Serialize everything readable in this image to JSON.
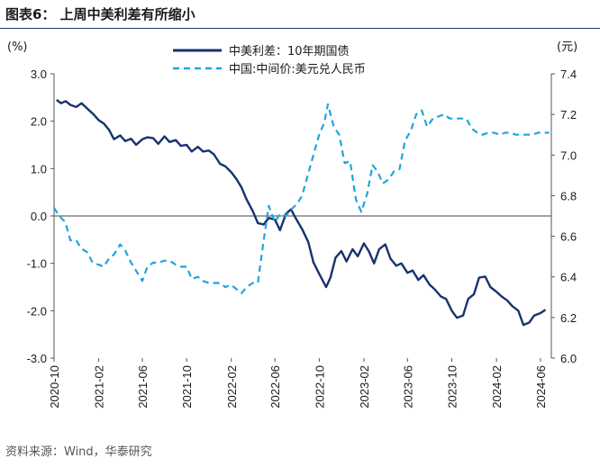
{
  "figure": {
    "title": "图表6：  上周中美利差有所缩小",
    "source": "资料来源：Wind，华泰研究"
  },
  "chart_data": {
    "type": "line",
    "x_tick_labels": [
      "2020-10",
      "2021-02",
      "2021-06",
      "2021-10",
      "2022-02",
      "2022-06",
      "2022-10",
      "2023-02",
      "2023-06",
      "2023-10",
      "2024-02",
      "2024-06"
    ],
    "y_left": {
      "unit": "(%)",
      "ticks": [
        "3.0",
        "2.0",
        "1.0",
        "0.0",
        "-1.0",
        "-2.0",
        "-3.0"
      ],
      "range": [
        -3.0,
        3.0
      ]
    },
    "y_right": {
      "unit": "(元)",
      "ticks": [
        "7.4",
        "7.2",
        "7.0",
        "6.8",
        "6.6",
        "6.4",
        "6.2",
        "6.0"
      ],
      "range": [
        6.0,
        7.4
      ]
    },
    "legend_position": "top-center",
    "zero_line": true,
    "series": [
      {
        "name": "中美利差：10年期国债",
        "axis": "left",
        "style": "solid",
        "color": "#17326e",
        "points": [
          [
            "2020-10-08",
            2.45
          ],
          [
            "2020-10-20",
            2.38
          ],
          [
            "2020-11-02",
            2.42
          ],
          [
            "2020-11-16",
            2.34
          ],
          [
            "2020-12-01",
            2.3
          ],
          [
            "2020-12-16",
            2.38
          ],
          [
            "2021-01-04",
            2.24
          ],
          [
            "2021-01-18",
            2.14
          ],
          [
            "2021-02-01",
            2.02
          ],
          [
            "2021-02-15",
            1.95
          ],
          [
            "2021-03-01",
            1.82
          ],
          [
            "2021-03-15",
            1.62
          ],
          [
            "2021-04-01",
            1.7
          ],
          [
            "2021-04-15",
            1.58
          ],
          [
            "2021-05-01",
            1.63
          ],
          [
            "2021-05-15",
            1.5
          ],
          [
            "2021-06-01",
            1.62
          ],
          [
            "2021-06-15",
            1.66
          ],
          [
            "2021-07-01",
            1.64
          ],
          [
            "2021-07-15",
            1.52
          ],
          [
            "2021-08-01",
            1.68
          ],
          [
            "2021-08-15",
            1.56
          ],
          [
            "2021-09-01",
            1.6
          ],
          [
            "2021-09-15",
            1.48
          ],
          [
            "2021-10-01",
            1.5
          ],
          [
            "2021-10-15",
            1.36
          ],
          [
            "2021-11-01",
            1.46
          ],
          [
            "2021-11-15",
            1.36
          ],
          [
            "2021-12-01",
            1.38
          ],
          [
            "2021-12-15",
            1.3
          ],
          [
            "2022-01-01",
            1.1
          ],
          [
            "2022-01-15",
            1.05
          ],
          [
            "2022-02-01",
            0.92
          ],
          [
            "2022-02-15",
            0.78
          ],
          [
            "2022-03-01",
            0.6
          ],
          [
            "2022-03-15",
            0.35
          ],
          [
            "2022-04-01",
            0.1
          ],
          [
            "2022-04-15",
            -0.15
          ],
          [
            "2022-05-01",
            -0.18
          ],
          [
            "2022-05-15",
            -0.04
          ],
          [
            "2022-06-01",
            -0.08
          ],
          [
            "2022-06-15",
            -0.3
          ],
          [
            "2022-07-01",
            0.04
          ],
          [
            "2022-07-15",
            0.14
          ],
          [
            "2022-08-01",
            -0.1
          ],
          [
            "2022-08-15",
            -0.28
          ],
          [
            "2022-09-01",
            -0.55
          ],
          [
            "2022-09-15",
            -0.98
          ],
          [
            "2022-10-01",
            -1.22
          ],
          [
            "2022-10-20",
            -1.5
          ],
          [
            "2022-11-01",
            -1.3
          ],
          [
            "2022-11-15",
            -0.88
          ],
          [
            "2022-12-01",
            -0.74
          ],
          [
            "2022-12-15",
            -0.96
          ],
          [
            "2023-01-01",
            -0.7
          ],
          [
            "2023-01-15",
            -0.85
          ],
          [
            "2023-02-01",
            -0.58
          ],
          [
            "2023-02-15",
            -0.75
          ],
          [
            "2023-03-01",
            -1.0
          ],
          [
            "2023-03-15",
            -0.7
          ],
          [
            "2023-04-01",
            -0.6
          ],
          [
            "2023-04-15",
            -0.9
          ],
          [
            "2023-05-01",
            -1.05
          ],
          [
            "2023-05-15",
            -1.0
          ],
          [
            "2023-06-01",
            -1.2
          ],
          [
            "2023-06-15",
            -1.15
          ],
          [
            "2023-07-01",
            -1.35
          ],
          [
            "2023-07-15",
            -1.25
          ],
          [
            "2023-08-01",
            -1.45
          ],
          [
            "2023-08-15",
            -1.55
          ],
          [
            "2023-09-01",
            -1.7
          ],
          [
            "2023-09-15",
            -1.75
          ],
          [
            "2023-10-01",
            -2.0
          ],
          [
            "2023-10-15",
            -2.15
          ],
          [
            "2023-11-01",
            -2.1
          ],
          [
            "2023-11-15",
            -1.75
          ],
          [
            "2023-12-01",
            -1.65
          ],
          [
            "2023-12-15",
            -1.3
          ],
          [
            "2024-01-01",
            -1.28
          ],
          [
            "2024-01-15",
            -1.5
          ],
          [
            "2024-02-01",
            -1.6
          ],
          [
            "2024-02-15",
            -1.7
          ],
          [
            "2024-03-01",
            -1.78
          ],
          [
            "2024-03-15",
            -1.9
          ],
          [
            "2024-04-01",
            -2.0
          ],
          [
            "2024-04-15",
            -2.3
          ],
          [
            "2024-05-01",
            -2.25
          ],
          [
            "2024-05-15",
            -2.1
          ],
          [
            "2024-06-01",
            -2.05
          ],
          [
            "2024-06-15",
            -1.98
          ]
        ]
      },
      {
        "name": "中国:中间价:美元兑人民币",
        "axis": "right",
        "style": "dashed",
        "color": "#1fa5dc",
        "points": [
          [
            "2020-10-01",
            6.74
          ],
          [
            "2020-10-15",
            6.7
          ],
          [
            "2020-11-01",
            6.67
          ],
          [
            "2020-11-15",
            6.58
          ],
          [
            "2020-12-01",
            6.58
          ],
          [
            "2020-12-15",
            6.54
          ],
          [
            "2021-01-01",
            6.52
          ],
          [
            "2021-01-15",
            6.47
          ],
          [
            "2021-02-01",
            6.46
          ],
          [
            "2021-02-15",
            6.45
          ],
          [
            "2021-03-01",
            6.49
          ],
          [
            "2021-03-15",
            6.51
          ],
          [
            "2021-04-01",
            6.56
          ],
          [
            "2021-04-15",
            6.53
          ],
          [
            "2021-05-01",
            6.47
          ],
          [
            "2021-05-15",
            6.43
          ],
          [
            "2021-06-01",
            6.38
          ],
          [
            "2021-06-15",
            6.45
          ],
          [
            "2021-07-01",
            6.47
          ],
          [
            "2021-07-15",
            6.47
          ],
          [
            "2021-08-01",
            6.48
          ],
          [
            "2021-08-15",
            6.48
          ],
          [
            "2021-09-01",
            6.46
          ],
          [
            "2021-09-15",
            6.45
          ],
          [
            "2021-10-01",
            6.45
          ],
          [
            "2021-10-15",
            6.39
          ],
          [
            "2021-11-01",
            6.4
          ],
          [
            "2021-11-15",
            6.38
          ],
          [
            "2021-12-01",
            6.37
          ],
          [
            "2021-12-15",
            6.37
          ],
          [
            "2022-01-01",
            6.37
          ],
          [
            "2022-01-15",
            6.35
          ],
          [
            "2022-02-01",
            6.36
          ],
          [
            "2022-02-15",
            6.34
          ],
          [
            "2022-03-01",
            6.32
          ],
          [
            "2022-03-15",
            6.35
          ],
          [
            "2022-04-01",
            6.37
          ],
          [
            "2022-04-15",
            6.37
          ],
          [
            "2022-05-01",
            6.58
          ],
          [
            "2022-05-15",
            6.75
          ],
          [
            "2022-06-01",
            6.67
          ],
          [
            "2022-06-15",
            6.71
          ],
          [
            "2022-07-01",
            6.7
          ],
          [
            "2022-07-15",
            6.73
          ],
          [
            "2022-08-01",
            6.76
          ],
          [
            "2022-08-15",
            6.8
          ],
          [
            "2022-09-01",
            6.91
          ],
          [
            "2022-09-15",
            7.0
          ],
          [
            "2022-10-01",
            7.1
          ],
          [
            "2022-10-15",
            7.16
          ],
          [
            "2022-10-25",
            7.25
          ],
          [
            "2022-11-10",
            7.14
          ],
          [
            "2022-11-25",
            7.1
          ],
          [
            "2022-12-10",
            6.96
          ],
          [
            "2022-12-25",
            6.97
          ],
          [
            "2023-01-10",
            6.78
          ],
          [
            "2023-01-25",
            6.72
          ],
          [
            "2023-02-10",
            6.81
          ],
          [
            "2023-02-25",
            6.95
          ],
          [
            "2023-03-10",
            6.92
          ],
          [
            "2023-03-25",
            6.86
          ],
          [
            "2023-04-10",
            6.88
          ],
          [
            "2023-04-25",
            6.92
          ],
          [
            "2023-05-10",
            6.93
          ],
          [
            "2023-05-25",
            7.07
          ],
          [
            "2023-06-10",
            7.12
          ],
          [
            "2023-06-25",
            7.2
          ],
          [
            "2023-07-10",
            7.22
          ],
          [
            "2023-07-25",
            7.14
          ],
          [
            "2023-08-10",
            7.18
          ],
          [
            "2023-08-25",
            7.19
          ],
          [
            "2023-09-10",
            7.2
          ],
          [
            "2023-09-25",
            7.18
          ],
          [
            "2023-10-10",
            7.18
          ],
          [
            "2023-10-25",
            7.18
          ],
          [
            "2023-11-10",
            7.18
          ],
          [
            "2023-11-25",
            7.13
          ],
          [
            "2023-12-10",
            7.11
          ],
          [
            "2023-12-25",
            7.1
          ],
          [
            "2024-01-10",
            7.11
          ],
          [
            "2024-01-25",
            7.11
          ],
          [
            "2024-02-10",
            7.1
          ],
          [
            "2024-02-25",
            7.11
          ],
          [
            "2024-03-10",
            7.11
          ],
          [
            "2024-03-25",
            7.1
          ],
          [
            "2024-04-10",
            7.1
          ],
          [
            "2024-04-25",
            7.1
          ],
          [
            "2024-05-10",
            7.1
          ],
          [
            "2024-05-25",
            7.11
          ],
          [
            "2024-06-10",
            7.11
          ],
          [
            "2024-06-25",
            7.11
          ]
        ]
      }
    ]
  }
}
